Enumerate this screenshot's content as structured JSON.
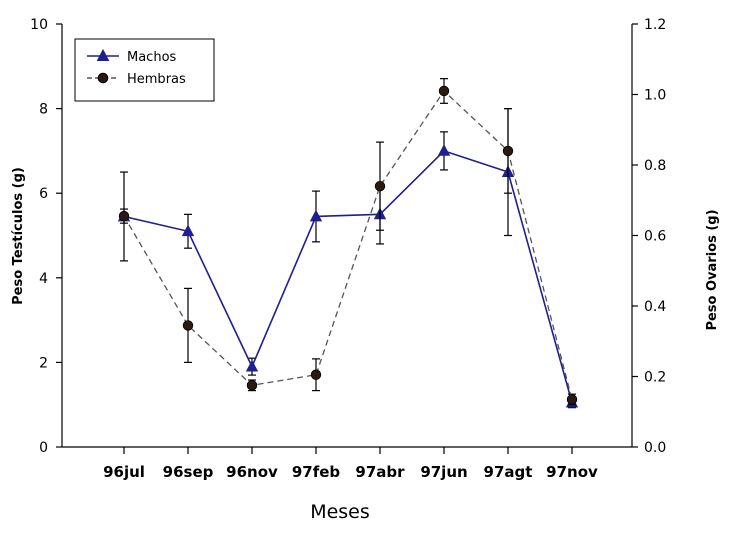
{
  "chart_data": {
    "type": "line",
    "xlabel": "Meses",
    "ylabel_left": "Peso Testículos (g)",
    "ylabel_right": "Peso  Ovarios (g)",
    "categories": [
      "96jul",
      "96sep",
      "96nov",
      "97feb",
      "97abr",
      "97jun",
      "97agt",
      "97nov"
    ],
    "ylim_left": [
      0,
      10
    ],
    "yticks_left": [
      "0",
      "2",
      "4",
      "6",
      "8",
      "10"
    ],
    "ylim_right": [
      0,
      1.2
    ],
    "yticks_right": [
      "0.0",
      "0.2",
      "0.4",
      "0.6",
      "0.8",
      "1.0",
      "1.2"
    ],
    "legend_position": "top-left",
    "grid": false,
    "series": [
      {
        "name": "Machos",
        "axis": "left",
        "color": "#1f1f8f",
        "line_style": "solid",
        "marker": "triangle",
        "values": [
          5.45,
          5.1,
          1.9,
          5.45,
          5.5,
          7.0,
          6.5,
          1.05
        ],
        "error": [
          1.05,
          0.4,
          0.2,
          0.6,
          0.7,
          0.45,
          1.5,
          0.12
        ]
      },
      {
        "name": "Hembras",
        "axis": "right",
        "color": "#333333",
        "line_style": "dashed",
        "marker": "circle",
        "values": [
          0.655,
          0.345,
          0.175,
          0.205,
          0.74,
          1.01,
          0.84,
          0.135
        ],
        "error": [
          0.02,
          0.105,
          0.015,
          0.045,
          0.125,
          0.035,
          0.12,
          0.015
        ]
      }
    ]
  }
}
